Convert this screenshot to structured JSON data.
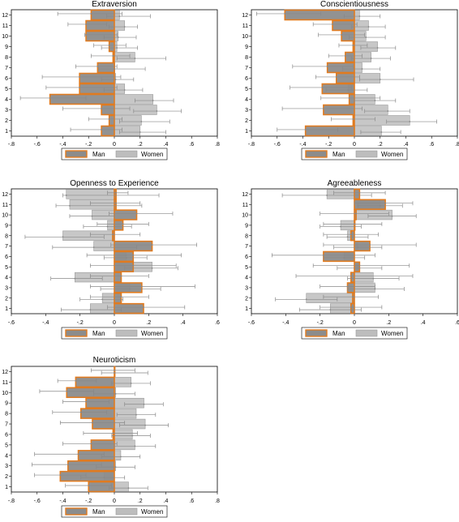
{
  "colors": {
    "man_fill": "#8c8c8c",
    "man_edge": "#e07b20",
    "women_fill": "#bdbdbd",
    "women_edge": "#9a9a9a",
    "whisker": "#888888",
    "axis": "#000000"
  },
  "legend": {
    "man": "Man",
    "women": "Women"
  },
  "chart_data": [
    {
      "type": "bar",
      "orientation": "horizontal",
      "title": "Extraversion",
      "categories": [
        "1",
        "2",
        "3",
        "4",
        "5",
        "6",
        "7",
        "8",
        "9",
        "10",
        "11",
        "12"
      ],
      "xlim": [
        -0.8,
        0.8
      ],
      "xticks": [
        -0.8,
        -0.6,
        -0.4,
        -0.2,
        0,
        0.2,
        0.4,
        0.6,
        0.8
      ],
      "xtick_labels": [
        "-.8",
        "-.6",
        "-.4",
        "-.2",
        "0",
        ".2",
        ".4",
        ".6",
        ".8"
      ],
      "series": [
        {
          "name": "Man",
          "values": [
            -0.1,
            -0.04,
            -0.1,
            -0.5,
            -0.27,
            -0.27,
            -0.13,
            -0.01,
            -0.04,
            -0.22,
            -0.22,
            -0.18
          ],
          "ci_low": [
            -0.34,
            -0.2,
            -0.4,
            -0.73,
            -0.53,
            -0.56,
            -0.3,
            -0.18,
            -0.16,
            -0.23,
            -0.36,
            -0.44
          ],
          "ci_high": [
            0.06,
            0.06,
            0.12,
            -0.22,
            0.02,
            0.05,
            0.02,
            0.12,
            0.09,
            0.02,
            -0.06,
            0.06
          ]
        },
        {
          "name": "Women",
          "values": [
            0.2,
            0.21,
            0.33,
            0.3,
            0.08,
            0.01,
            0.0,
            0.16,
            0.02,
            0.03,
            0.08,
            0.04
          ],
          "ci_low": [
            0.04,
            0.04,
            0.15,
            0.16,
            -0.08,
            -0.1,
            -0.12,
            0.02,
            -0.1,
            -0.08,
            -0.04,
            -0.06
          ],
          "ci_high": [
            0.4,
            0.43,
            0.52,
            0.46,
            0.22,
            0.15,
            0.24,
            0.4,
            0.18,
            0.17,
            0.18,
            0.28
          ]
        }
      ]
    },
    {
      "type": "bar",
      "orientation": "horizontal",
      "title": "Conscientiousness",
      "categories": [
        "1",
        "2",
        "3",
        "4",
        "5",
        "6",
        "7",
        "8",
        "9",
        "10",
        "11",
        "12"
      ],
      "xlim": [
        -0.8,
        0.8
      ],
      "xticks": [
        -0.8,
        -0.6,
        -0.4,
        -0.2,
        0,
        0.2,
        0.4,
        0.6,
        0.8
      ],
      "xtick_labels": [
        "-.8",
        "-.6",
        "-.4",
        "-.2",
        "0",
        ".2",
        ".4",
        ".6",
        ".8"
      ],
      "series": [
        {
          "name": "Man",
          "values": [
            -0.38,
            -0.01,
            -0.24,
            -0.04,
            -0.25,
            -0.14,
            -0.21,
            -0.07,
            -0.01,
            -0.1,
            -0.17,
            -0.54
          ],
          "ci_low": [
            -0.6,
            -0.18,
            -0.56,
            -0.26,
            -0.5,
            -0.3,
            -0.48,
            -0.2,
            -0.12,
            -0.28,
            -0.32,
            -0.76
          ],
          "ci_high": [
            -0.13,
            0.16,
            0.06,
            0.2,
            -0.02,
            0.04,
            -0.01,
            0.06,
            0.1,
            0.08,
            0.02,
            -0.26
          ]
        },
        {
          "name": "Women",
          "values": [
            0.21,
            0.43,
            0.26,
            0.16,
            -0.05,
            0.2,
            0.06,
            0.13,
            0.18,
            0.09,
            0.11,
            0.04
          ],
          "ci_low": [
            0.05,
            0.25,
            0.08,
            0.0,
            -0.22,
            0.04,
            -0.09,
            -0.02,
            0.05,
            -0.04,
            -0.02,
            -0.08
          ],
          "ci_high": [
            0.36,
            0.64,
            0.43,
            0.32,
            0.1,
            0.46,
            0.2,
            0.28,
            0.32,
            0.24,
            0.24,
            0.2
          ]
        }
      ]
    },
    {
      "type": "bar",
      "orientation": "horizontal",
      "title": "Openness to Experience",
      "categories": [
        "1",
        "2",
        "3",
        "4",
        "5",
        "6",
        "7",
        "8",
        "9",
        "10",
        "11",
        "12"
      ],
      "xlim": [
        -0.6,
        0.6
      ],
      "xticks": [
        -0.6,
        -0.4,
        -0.2,
        0,
        0.2,
        0.4,
        0.6
      ],
      "xtick_labels": [
        "-.6",
        "-.4",
        "-.2",
        "0",
        ".2",
        ".4",
        ".6"
      ],
      "series": [
        {
          "name": "Man",
          "values": [
            0.17,
            0.04,
            0.16,
            0.04,
            0.11,
            0.11,
            0.22,
            -0.01,
            0.05,
            0.13,
            0.01,
            0.01
          ],
          "ci_low": [
            -0.04,
            -0.14,
            -0.14,
            -0.14,
            -0.14,
            -0.16,
            -0.02,
            -0.14,
            -0.1,
            -0.03,
            -0.14,
            -0.04
          ],
          "ci_high": [
            0.41,
            0.2,
            0.47,
            0.2,
            0.36,
            0.39,
            0.48,
            0.15,
            0.2,
            0.34,
            0.15,
            0.08
          ]
        },
        {
          "name": "Women",
          "values": [
            -0.14,
            -0.07,
            0.09,
            -0.23,
            0.22,
            0.07,
            -0.12,
            -0.3,
            -0.04,
            -0.13,
            -0.26,
            -0.28
          ],
          "ci_low": [
            -0.31,
            -0.2,
            -0.08,
            -0.37,
            0.06,
            -0.06,
            -0.36,
            -0.52,
            -0.18,
            -0.26,
            -0.34,
            -0.3
          ],
          "ci_high": [
            0.04,
            0.05,
            0.27,
            -0.07,
            0.37,
            0.19,
            0.13,
            -0.06,
            0.1,
            0.0,
            0.16,
            0.26
          ]
        }
      ]
    },
    {
      "type": "bar",
      "orientation": "horizontal",
      "title": "Agreeableness",
      "categories": [
        "1",
        "2",
        "3",
        "4",
        "5",
        "6",
        "7",
        "8",
        "9",
        "10",
        "11",
        "12"
      ],
      "xlim": [
        -0.6,
        0.6
      ],
      "xticks": [
        -0.6,
        -0.4,
        -0.2,
        0,
        0.2,
        0.4,
        0.6
      ],
      "xtick_labels": [
        "-.6",
        "-.4",
        "-.2",
        "0",
        ".2",
        ".4",
        ".6"
      ],
      "series": [
        {
          "name": "Man",
          "values": [
            -0.02,
            -0.01,
            -0.04,
            -0.02,
            0.03,
            -0.18,
            0.09,
            -0.02,
            0.0,
            0.01,
            0.18,
            0.03
          ],
          "ci_low": [
            -0.2,
            -0.18,
            -0.2,
            -0.34,
            -0.24,
            -0.48,
            -0.18,
            -0.18,
            -0.18,
            -0.2,
            0.0,
            -0.12
          ],
          "ci_high": [
            0.16,
            0.14,
            0.12,
            0.34,
            0.32,
            0.12,
            0.36,
            0.14,
            0.16,
            0.2,
            0.34,
            0.18
          ]
        },
        {
          "name": "Women",
          "values": [
            -0.14,
            -0.28,
            0.12,
            0.11,
            0.03,
            -0.06,
            0.02,
            -0.04,
            -0.08,
            0.22,
            0.15,
            -0.16
          ],
          "ci_low": [
            -0.32,
            -0.46,
            -0.04,
            -0.04,
            -0.1,
            -0.18,
            -0.12,
            -0.16,
            -0.2,
            0.08,
            0.02,
            -0.42
          ],
          "ci_high": [
            0.04,
            -0.1,
            0.29,
            0.26,
            0.16,
            0.06,
            0.16,
            0.08,
            0.04,
            0.36,
            0.28,
            0.1
          ]
        }
      ]
    },
    {
      "type": "bar",
      "orientation": "horizontal",
      "title": "Neuroticism",
      "categories": [
        "1",
        "2",
        "3",
        "4",
        "5",
        "6",
        "7",
        "8",
        "9",
        "10",
        "11",
        "12"
      ],
      "xlim": [
        -0.8,
        0.8
      ],
      "xticks": [
        -0.8,
        -0.6,
        -0.4,
        -0.2,
        0,
        0.2,
        0.4,
        0.6,
        0.8
      ],
      "xtick_labels": [
        "-.8",
        "-.6",
        "-.4",
        "-.2",
        "0",
        ".2",
        ".4",
        ".6",
        ".8"
      ],
      "series": [
        {
          "name": "Man",
          "values": [
            -0.2,
            -0.42,
            -0.36,
            -0.28,
            -0.18,
            -0.01,
            -0.17,
            -0.26,
            -0.22,
            -0.37,
            -0.3,
            0.0
          ],
          "ci_low": [
            -0.38,
            -0.62,
            -0.64,
            -0.62,
            -0.4,
            -0.24,
            -0.42,
            -0.48,
            -0.4,
            -0.58,
            -0.44,
            -0.18
          ],
          "ci_high": [
            -0.02,
            -0.22,
            -0.1,
            -0.08,
            0.02,
            0.18,
            0.08,
            -0.06,
            -0.04,
            -0.16,
            -0.14,
            0.16
          ]
        },
        {
          "name": "Women",
          "values": [
            0.11,
            -0.08,
            0.01,
            0.05,
            0.16,
            0.14,
            0.24,
            0.17,
            0.23,
            0.01,
            0.13,
            0.0
          ],
          "ci_low": [
            -0.04,
            -0.26,
            -0.14,
            -0.1,
            0.0,
            -0.02,
            0.04,
            0.02,
            0.08,
            -0.16,
            -0.02,
            -0.1
          ],
          "ci_high": [
            0.26,
            0.08,
            0.16,
            0.2,
            0.32,
            0.28,
            0.42,
            0.32,
            0.38,
            0.16,
            0.28,
            0.26
          ]
        }
      ]
    }
  ]
}
